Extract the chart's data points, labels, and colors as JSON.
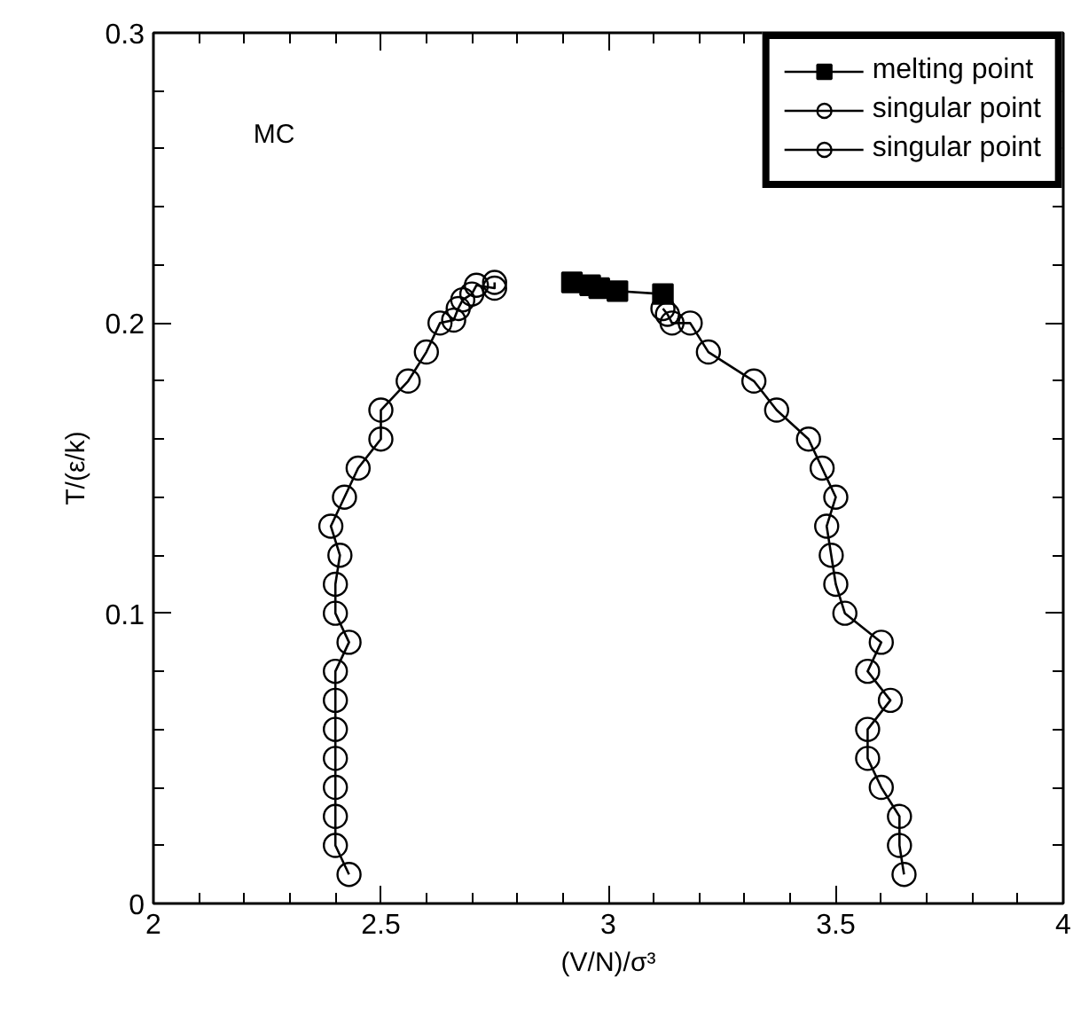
{
  "chart_data": {
    "type": "line",
    "xlabel": "(V/N)/σ³",
    "ylabel": "T/(ε/k)",
    "annotations": [
      "MC"
    ],
    "xlim": [
      2,
      4
    ],
    "ylim": [
      0,
      0.3
    ],
    "xticks": [
      2,
      {
        "value": 2.1,
        "label": null
      },
      {
        "value": 2.2,
        "label": null
      },
      {
        "value": 2.3,
        "label": null
      },
      {
        "value": 2.4,
        "label": null
      },
      2.5,
      {
        "value": 2.6,
        "label": null
      },
      {
        "value": 2.7,
        "label": null
      },
      {
        "value": 2.8,
        "label": null
      },
      {
        "value": 2.9,
        "label": null
      },
      3,
      {
        "value": 3.1,
        "label": null
      },
      {
        "value": 3.2,
        "label": null
      },
      {
        "value": 3.3,
        "label": null
      },
      {
        "value": 3.4,
        "label": null
      },
      3.5,
      {
        "value": 3.6,
        "label": null
      },
      {
        "value": 3.7,
        "label": null
      },
      {
        "value": 3.8,
        "label": null
      },
      {
        "value": 3.9,
        "label": null
      },
      4
    ],
    "yticks": [
      0,
      {
        "value": 0.02,
        "label": null
      },
      {
        "value": 0.04,
        "label": null
      },
      {
        "value": 0.06,
        "label": null
      },
      {
        "value": 0.08,
        "label": null
      },
      0.1,
      {
        "value": 0.12,
        "label": null
      },
      {
        "value": 0.14,
        "label": null
      },
      {
        "value": 0.16,
        "label": null
      },
      {
        "value": 0.18,
        "label": null
      },
      0.2,
      {
        "value": 0.22,
        "label": null
      },
      {
        "value": 0.24,
        "label": null
      },
      {
        "value": 0.26,
        "label": null
      },
      {
        "value": 0.28,
        "label": null
      },
      0.3
    ],
    "legend": "top right",
    "grid": false,
    "line_style": "solid",
    "series": [
      {
        "name": "melting point",
        "color": "#000000",
        "marker": "square",
        "x": [
          2.92,
          2.96,
          2.98,
          3.02,
          3.12
        ],
        "values": [
          0.214,
          0.213,
          0.212,
          0.211,
          0.21
        ]
      },
      {
        "name": "singular point",
        "color": "#000000",
        "marker": "circle",
        "x": [
          2.43,
          2.4,
          2.4,
          2.4,
          2.4,
          2.4,
          2.4,
          2.4,
          2.43,
          2.4,
          2.4,
          2.41,
          2.39,
          2.42,
          2.45,
          2.5,
          2.5,
          2.56,
          2.6,
          2.63,
          2.66,
          2.67,
          2.68,
          2.7,
          2.71,
          2.75,
          2.75
        ],
        "values": [
          0.01,
          0.02,
          0.03,
          0.04,
          0.05,
          0.06,
          0.07,
          0.08,
          0.09,
          0.1,
          0.11,
          0.12,
          0.13,
          0.14,
          0.15,
          0.16,
          0.17,
          0.18,
          0.19,
          0.2,
          0.201,
          0.205,
          0.208,
          0.21,
          0.213,
          0.212,
          0.214
        ]
      },
      {
        "name": "singular point",
        "color": "#000000",
        "marker": "circle",
        "x": [
          3.65,
          3.64,
          3.64,
          3.6,
          3.57,
          3.57,
          3.62,
          3.57,
          3.6,
          3.52,
          3.5,
          3.49,
          3.48,
          3.5,
          3.47,
          3.44,
          3.37,
          3.32,
          3.22,
          3.18,
          3.14,
          3.13,
          3.12
        ],
        "values": [
          0.01,
          0.02,
          0.03,
          0.04,
          0.05,
          0.06,
          0.07,
          0.08,
          0.09,
          0.1,
          0.11,
          0.12,
          0.13,
          0.14,
          0.15,
          0.16,
          0.17,
          0.18,
          0.19,
          0.2,
          0.2,
          0.203,
          0.205
        ]
      }
    ]
  }
}
